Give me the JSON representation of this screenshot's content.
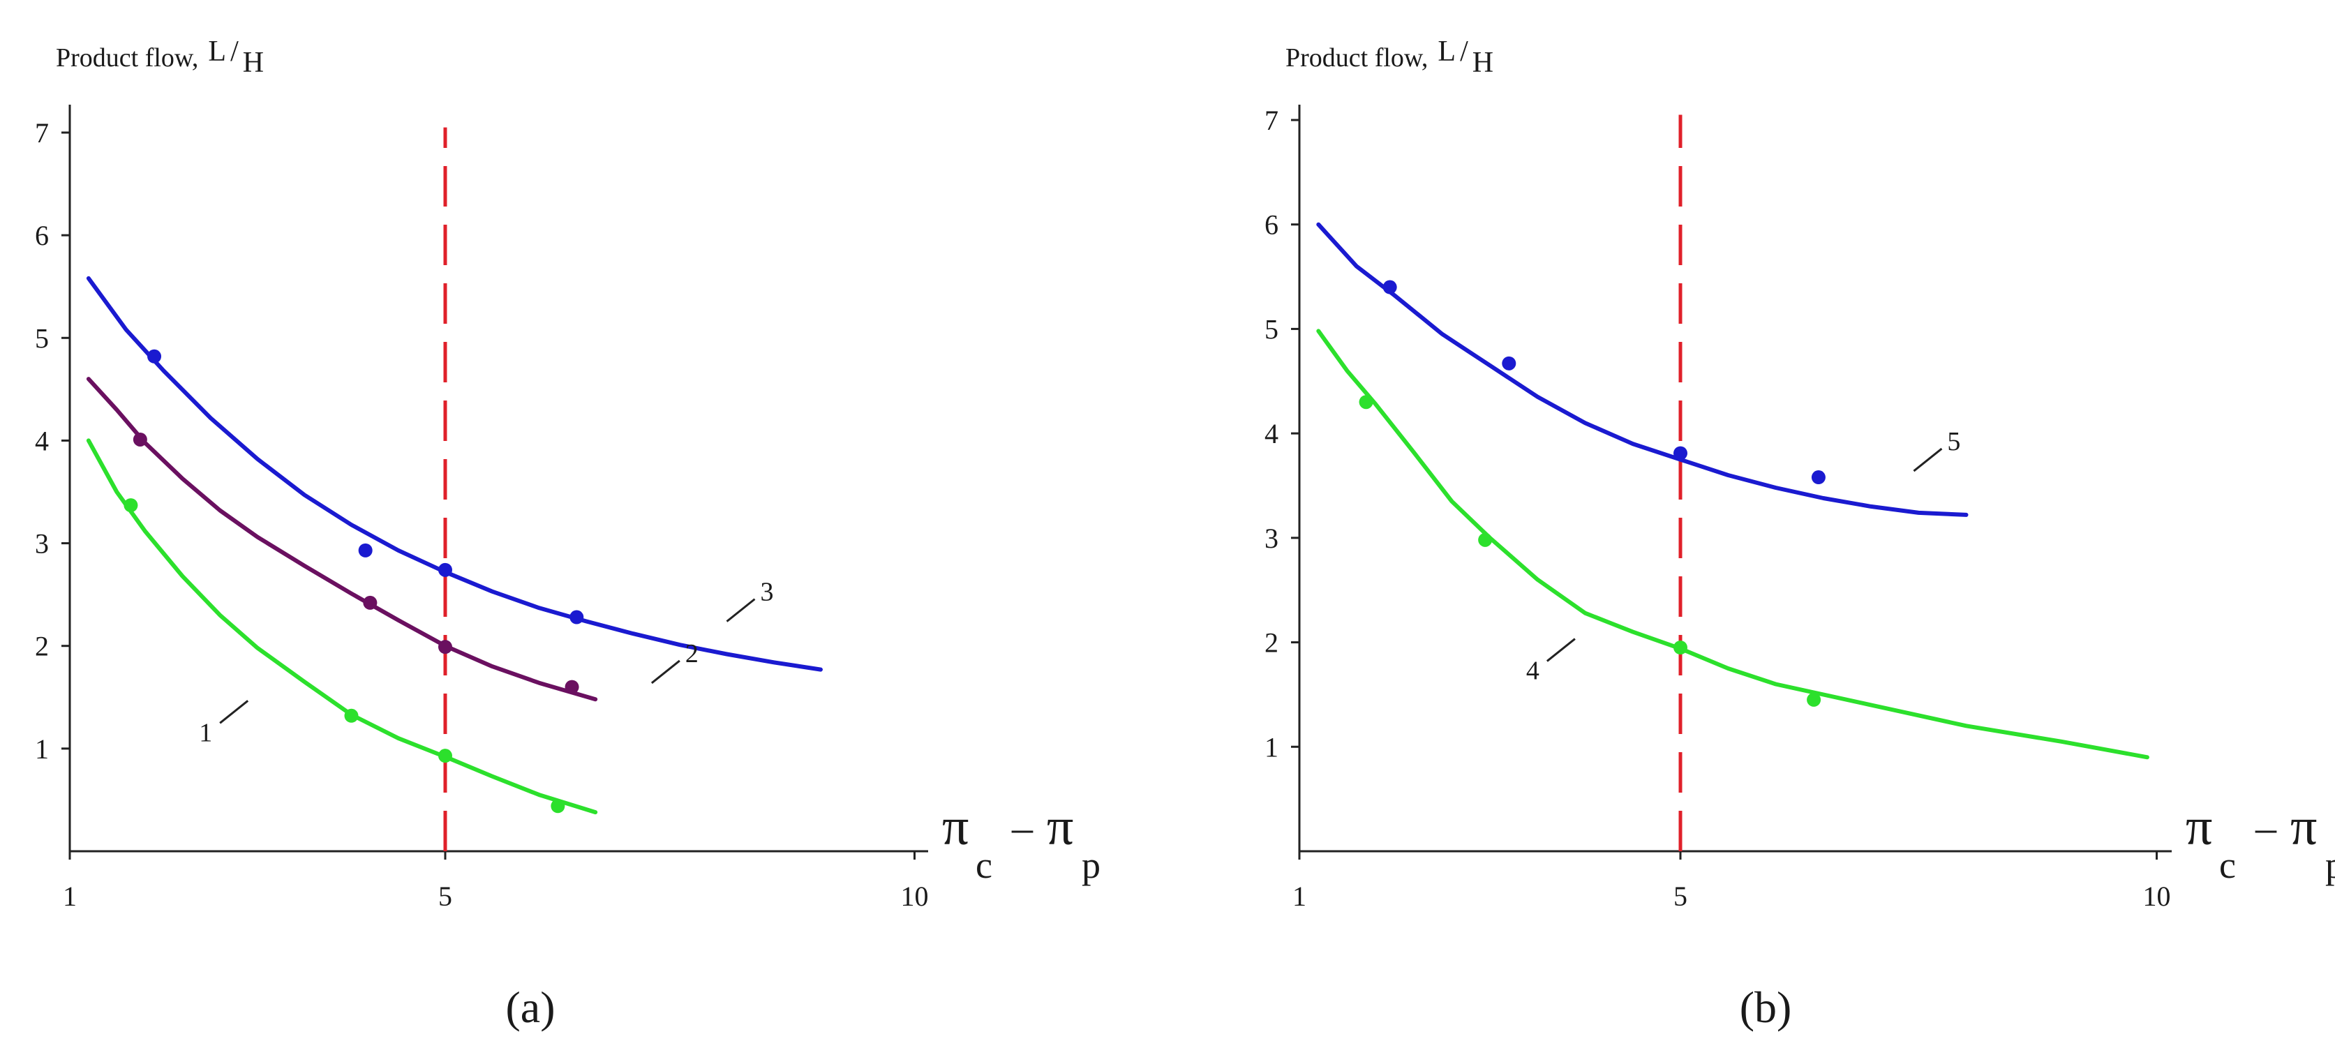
{
  "chart_data": [
    {
      "panel_label": "(a)",
      "type": "line",
      "ylabel_prefix": "Product flow,",
      "ylabel_unit_num": "L",
      "ylabel_unit_den": "H",
      "xlabel": {
        "pi": "π",
        "sub1": "c",
        "minus": "–",
        "sub2": "p"
      },
      "xlim": [
        1,
        11.3
      ],
      "ylim": [
        0,
        7.3
      ],
      "x_ticks": [
        {
          "value": 1,
          "label": "1"
        },
        {
          "value": 5,
          "label": "5"
        },
        {
          "value": 10,
          "label": "10"
        }
      ],
      "y_ticks": [
        {
          "value": 1,
          "label": "1"
        },
        {
          "value": 2,
          "label": "2"
        },
        {
          "value": 3,
          "label": "3"
        },
        {
          "value": 4,
          "label": "4"
        },
        {
          "value": 5,
          "label": "5"
        },
        {
          "value": 6,
          "label": "6"
        },
        {
          "value": 7,
          "label": "7"
        }
      ],
      "reference_line": {
        "x": 5,
        "y_range": [
          0,
          7.05
        ],
        "color": "#e0202a",
        "style": "dashed"
      },
      "series": [
        {
          "name": "3",
          "color": "#1a1ad0",
          "curve": [
            [
              1.2,
              5.58
            ],
            [
              1.6,
              5.08
            ],
            [
              2,
              4.68
            ],
            [
              2.5,
              4.22
            ],
            [
              3,
              3.82
            ],
            [
              3.5,
              3.47
            ],
            [
              4,
              3.18
            ],
            [
              4.5,
              2.93
            ],
            [
              5,
              2.72
            ],
            [
              5.5,
              2.53
            ],
            [
              6,
              2.37
            ],
            [
              6.5,
              2.24
            ],
            [
              7,
              2.12
            ],
            [
              7.5,
              2.01
            ],
            [
              8,
              1.92
            ],
            [
              8.5,
              1.84
            ],
            [
              9,
              1.77
            ]
          ],
          "points": [
            [
              1.9,
              4.82
            ],
            [
              4.15,
              2.93
            ],
            [
              5,
              2.74
            ],
            [
              6.4,
              2.28
            ]
          ],
          "label_pos": [
            8.0,
            2.32
          ]
        },
        {
          "name": "2",
          "color": "#6a1060",
          "curve": [
            [
              1.2,
              4.6
            ],
            [
              1.5,
              4.3
            ],
            [
              1.8,
              3.98
            ],
            [
              2.2,
              3.63
            ],
            [
              2.6,
              3.32
            ],
            [
              3,
              3.06
            ],
            [
              3.5,
              2.78
            ],
            [
              4,
              2.51
            ],
            [
              4.5,
              2.25
            ],
            [
              5,
              2.0
            ],
            [
              5.5,
              1.8
            ],
            [
              6,
              1.64
            ],
            [
              6.6,
              1.48
            ]
          ],
          "points": [
            [
              1.75,
              4.01
            ],
            [
              4.2,
              2.42
            ],
            [
              5,
              1.99
            ],
            [
              6.35,
              1.6
            ]
          ],
          "label_pos": [
            7.2,
            1.72
          ]
        },
        {
          "name": "1",
          "color": "#2ce02c",
          "curve": [
            [
              1.2,
              4.0
            ],
            [
              1.5,
              3.5
            ],
            [
              1.8,
              3.12
            ],
            [
              2.2,
              2.68
            ],
            [
              2.6,
              2.3
            ],
            [
              3,
              1.98
            ],
            [
              3.5,
              1.65
            ],
            [
              4,
              1.33
            ],
            [
              4.5,
              1.1
            ],
            [
              5,
              0.92
            ],
            [
              5.5,
              0.73
            ],
            [
              6,
              0.55
            ],
            [
              6.6,
              0.38
            ]
          ],
          "points": [
            [
              1.65,
              3.37
            ],
            [
              4.0,
              1.32
            ],
            [
              5,
              0.93
            ],
            [
              6.2,
              0.44
            ]
          ],
          "label_pos": [
            2.6,
            1.33
          ]
        }
      ]
    },
    {
      "panel_label": "(b)",
      "type": "line",
      "ylabel_prefix": "Product flow,",
      "ylabel_unit_num": "L",
      "ylabel_unit_den": "H",
      "xlabel": {
        "pi": "π",
        "sub1": "c",
        "minus": "–",
        "sub2": "p"
      },
      "xlim": [
        1,
        11.5
      ],
      "ylim": [
        0,
        7.3
      ],
      "x_ticks": [
        {
          "value": 1,
          "label": "1"
        },
        {
          "value": 5,
          "label": "5"
        },
        {
          "value": 10,
          "label": "10"
        }
      ],
      "y_ticks": [
        {
          "value": 1,
          "label": "1"
        },
        {
          "value": 2,
          "label": "2"
        },
        {
          "value": 3,
          "label": "3"
        },
        {
          "value": 4,
          "label": "4"
        },
        {
          "value": 5,
          "label": "5"
        },
        {
          "value": 6,
          "label": "6"
        },
        {
          "value": 7,
          "label": "7"
        }
      ],
      "reference_line": {
        "x": 5,
        "y_range": [
          0,
          7.05
        ],
        "color": "#e0202a",
        "style": "dashed"
      },
      "series": [
        {
          "name": "5",
          "color": "#1a1ad0",
          "curve": [
            [
              1.2,
              6.0
            ],
            [
              1.6,
              5.6
            ],
            [
              2,
              5.32
            ],
            [
              2.5,
              4.95
            ],
            [
              3,
              4.65
            ],
            [
              3.5,
              4.35
            ],
            [
              4,
              4.1
            ],
            [
              4.5,
              3.9
            ],
            [
              5,
              3.75
            ],
            [
              5.5,
              3.6
            ],
            [
              6,
              3.48
            ],
            [
              6.5,
              3.38
            ],
            [
              7,
              3.3
            ],
            [
              7.5,
              3.24
            ],
            [
              8,
              3.22
            ]
          ],
          "points": [
            [
              1.95,
              5.4
            ],
            [
              3.2,
              4.67
            ],
            [
              5,
              3.81
            ],
            [
              6.45,
              3.58
            ]
          ],
          "label_pos": [
            7.45,
            3.72
          ]
        },
        {
          "name": "4",
          "color": "#2ce02c",
          "curve": [
            [
              1.2,
              4.98
            ],
            [
              1.5,
              4.6
            ],
            [
              1.8,
              4.28
            ],
            [
              2.2,
              3.82
            ],
            [
              2.6,
              3.35
            ],
            [
              3,
              3.0
            ],
            [
              3.5,
              2.6
            ],
            [
              4,
              2.28
            ],
            [
              4.5,
              2.1
            ],
            [
              5,
              1.94
            ],
            [
              5.5,
              1.75
            ],
            [
              6,
              1.6
            ],
            [
              7,
              1.4
            ],
            [
              8,
              1.2
            ],
            [
              9,
              1.05
            ],
            [
              9.9,
              0.9
            ]
          ],
          "points": [
            [
              1.7,
              4.3
            ],
            [
              2.95,
              2.98
            ],
            [
              5,
              1.95
            ],
            [
              6.4,
              1.45
            ]
          ],
          "label_pos": [
            3.6,
            1.9
          ]
        }
      ]
    }
  ]
}
